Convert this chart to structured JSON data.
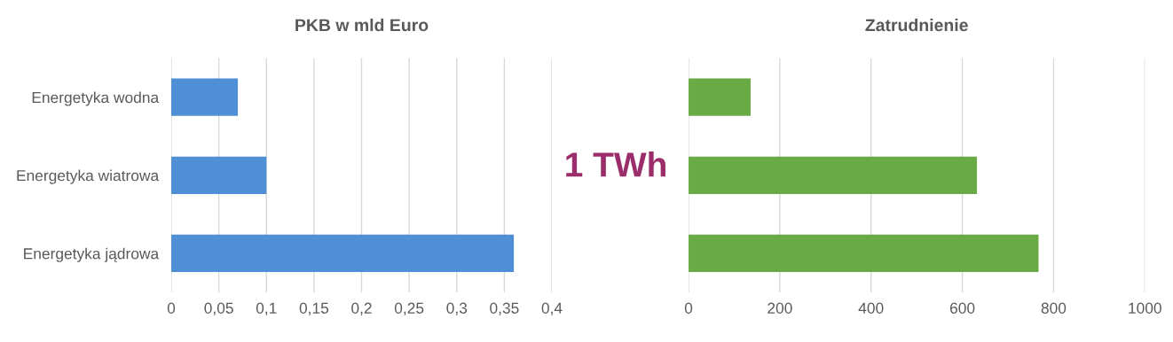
{
  "chart_data": [
    {
      "type": "bar",
      "orientation": "horizontal",
      "title": "PKB w mld Euro",
      "categories": [
        "Energetyka wodna",
        "Energetyka wiatrowa",
        "Energetyka jądrowa"
      ],
      "values": [
        0.07,
        0.1,
        0.36
      ],
      "color": "#4f8fd6",
      "xlim": [
        0,
        0.4
      ],
      "xticks": [
        0,
        {
          "value": 0.05,
          "label": "0,05"
        },
        {
          "value": 0.1,
          "label": "0,1"
        },
        {
          "value": 0.15,
          "label": "0,15"
        },
        {
          "value": 0.2,
          "label": "0,2"
        },
        {
          "value": 0.25,
          "label": "0,25"
        },
        {
          "value": 0.3,
          "label": "0,3"
        },
        {
          "value": 0.35,
          "label": "0,35"
        },
        {
          "value": 0.4,
          "label": "0,4"
        }
      ],
      "grid": "x",
      "annotations": [
        "1 TWh"
      ]
    },
    {
      "type": "bar",
      "orientation": "horizontal",
      "title": "Zatrudnienie",
      "categories": [
        null,
        null,
        null
      ],
      "values": [
        136,
        632,
        767
      ],
      "color": "#6aaa45",
      "xlim": [
        0,
        1000
      ],
      "xticks": [
        0,
        200,
        400,
        600,
        800,
        1000
      ],
      "grid": "x",
      "tick_labels": "x"
    }
  ]
}
